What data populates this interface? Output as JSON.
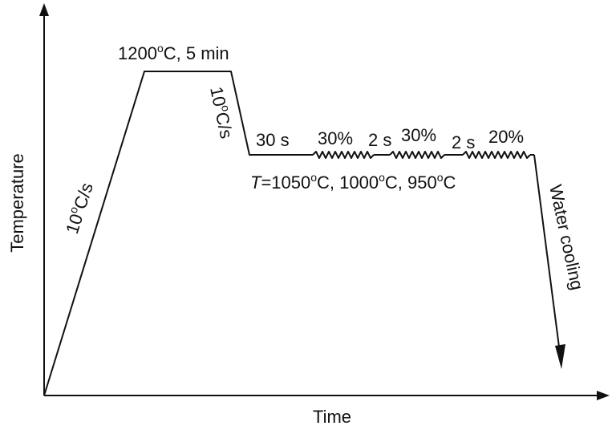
{
  "axes": {
    "x_title": "Time",
    "y_title": "Temperature"
  },
  "labels": {
    "heating_rate": {
      "value": "10",
      "deg": "o",
      "unit": "C/s"
    },
    "soak": {
      "temp": "1200",
      "deg": "o",
      "rest": "C, 5 min"
    },
    "cooling_rate": {
      "value": "10",
      "deg": "o",
      "unit": "C/s"
    },
    "hold": "30 s",
    "pass1": "30%",
    "interval1": "2 s",
    "pass2": "30%",
    "interval2": "2 s",
    "pass3": "20%",
    "deform_temp": {
      "symbol": "T",
      "t1": "=1050",
      "deg1": "o",
      "t2": "C, 1000",
      "deg2": "o",
      "t3": "C, 950",
      "deg3": "o",
      "t4": "C"
    },
    "quench": "Water cooling"
  },
  "colors": {
    "line": "#111111",
    "background": "#ffffff"
  }
}
